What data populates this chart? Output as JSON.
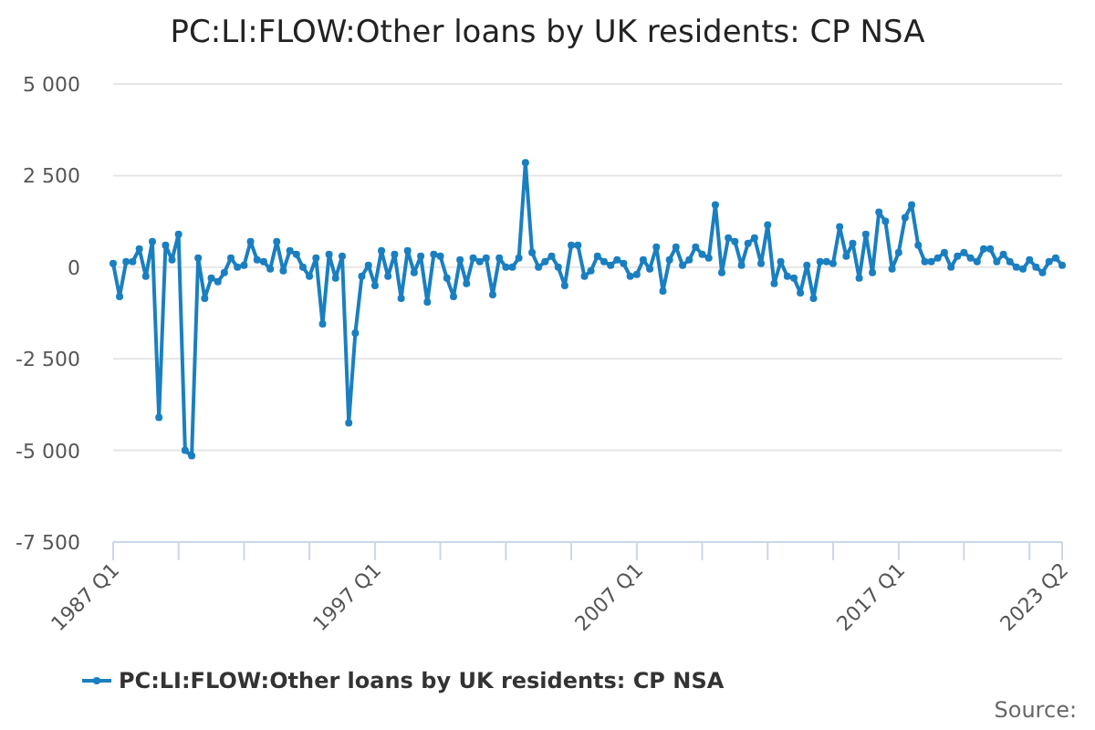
{
  "chart_data": {
    "type": "line",
    "title": "PC:LI:FLOW:Other loans by UK residents: CP NSA",
    "x": [
      "1987-01",
      "1987-04",
      "1987-07",
      "1987-10",
      "1988-01",
      "1988-04",
      "1988-07",
      "1988-10",
      "1989-01",
      "1989-04",
      "1989-07",
      "1989-10",
      "1990-01",
      "1990-04",
      "1990-07",
      "1990-10",
      "1991-01",
      "1991-04",
      "1991-07",
      "1991-10",
      "1992-01",
      "1992-04",
      "1992-07",
      "1992-10",
      "1993-01",
      "1993-04",
      "1993-07",
      "1993-10",
      "1994-01",
      "1994-04",
      "1994-07",
      "1994-10",
      "1995-01",
      "1995-04",
      "1995-07",
      "1995-10",
      "1996-01",
      "1996-04",
      "1996-07",
      "1996-10",
      "1997-01",
      "1997-04",
      "1997-07",
      "1997-10",
      "1998-01",
      "1998-04",
      "1998-07",
      "1998-10",
      "1999-01",
      "1999-04",
      "1999-07",
      "1999-10",
      "2000-01",
      "2000-04",
      "2000-07",
      "2000-10",
      "2001-01",
      "2001-04",
      "2001-07",
      "2001-10",
      "2002-01",
      "2002-04",
      "2002-07",
      "2002-10",
      "2003-01",
      "2003-04",
      "2003-07",
      "2003-10",
      "2004-01",
      "2004-04",
      "2004-07",
      "2004-10",
      "2005-01",
      "2005-04",
      "2005-07",
      "2005-10",
      "2006-01",
      "2006-04",
      "2006-07",
      "2006-10",
      "2007-01",
      "2007-04",
      "2007-07",
      "2007-10",
      "2008-01",
      "2008-04",
      "2008-07",
      "2008-10",
      "2009-01",
      "2009-04",
      "2009-07",
      "2009-10",
      "2010-01",
      "2010-04",
      "2010-07",
      "2010-10",
      "2011-01",
      "2011-04",
      "2011-07",
      "2011-10",
      "2012-01",
      "2012-04",
      "2012-07",
      "2012-10",
      "2013-01",
      "2013-04",
      "2013-07",
      "2013-10",
      "2014-01",
      "2014-04",
      "2014-07",
      "2014-10",
      "2015-01",
      "2015-04",
      "2015-07",
      "2015-10",
      "2016-01",
      "2016-04",
      "2016-07",
      "2016-10",
      "2017-01",
      "2017-04",
      "2017-07",
      "2017-10",
      "2018-01",
      "2018-04",
      "2018-07",
      "2018-10",
      "2019-01",
      "2019-04",
      "2019-07",
      "2019-10",
      "2020-01",
      "2020-04",
      "2020-07",
      "2020-10",
      "2021-01",
      "2021-04",
      "2021-07",
      "2021-10",
      "2022-01",
      "2022-04",
      "2022-07",
      "2022-10",
      "2023-01",
      "2023-04"
    ],
    "series": [
      {
        "name": "PC:LI:FLOW:Other loans by UK residents: CP NSA",
        "color": "#1a7fc1",
        "values": [
          100,
          -800,
          150,
          150,
          500,
          -250,
          700,
          -4100,
          600,
          200,
          900,
          -5000,
          -5150,
          250,
          -850,
          -300,
          -400,
          -150,
          250,
          0,
          50,
          700,
          200,
          150,
          -50,
          700,
          -100,
          450,
          350,
          0,
          -250,
          250,
          -1550,
          350,
          -300,
          300,
          -4250,
          -1800,
          -250,
          50,
          -500,
          450,
          -250,
          350,
          -850,
          450,
          -150,
          300,
          -950,
          350,
          300,
          -300,
          -800,
          200,
          -450,
          250,
          150,
          250,
          -750,
          250,
          0,
          0,
          250,
          2850,
          400,
          0,
          150,
          300,
          0,
          -500,
          600,
          600,
          -250,
          -100,
          300,
          150,
          50,
          200,
          100,
          -250,
          -200,
          200,
          -50,
          550,
          -650,
          200,
          550,
          50,
          200,
          550,
          350,
          250,
          1700,
          -150,
          800,
          700,
          50,
          650,
          800,
          100,
          1150,
          -450,
          150,
          -250,
          -300,
          -700,
          50,
          -850,
          150,
          150,
          100,
          1100,
          300,
          650,
          -300,
          900,
          -150,
          1500,
          1250,
          -50,
          400,
          1350,
          1700,
          600,
          150,
          150,
          250,
          400,
          0,
          300,
          400,
          250,
          150,
          500,
          500,
          150,
          350,
          150,
          0,
          -50,
          200,
          0,
          -150,
          150,
          250,
          50
        ]
      }
    ],
    "ylim": [
      -7500,
      5000
    ],
    "yticks": [
      {
        "value": 5000,
        "label": "5 000"
      },
      {
        "value": 2500,
        "label": "2 500"
      },
      0,
      {
        "value": -2500,
        "label": "-2 500"
      },
      {
        "value": -5000,
        "label": "-5 000"
      },
      {
        "value": -7500,
        "label": "-7 500"
      }
    ],
    "xticks": [
      {
        "value": "1987-01",
        "label": "1987 Q1"
      },
      {
        "value": "1989-07",
        "label": null
      },
      {
        "value": "1992-01",
        "label": null
      },
      {
        "value": "1994-07",
        "label": null
      },
      {
        "value": "1997-01",
        "label": "1997 Q1"
      },
      {
        "value": "1999-07",
        "label": null
      },
      {
        "value": "2002-01",
        "label": null
      },
      {
        "value": "2004-07",
        "label": null
      },
      {
        "value": "2007-01",
        "label": "2007 Q1"
      },
      {
        "value": "2009-07",
        "label": null
      },
      {
        "value": "2012-01",
        "label": null
      },
      {
        "value": "2014-07",
        "label": null
      },
      {
        "value": "2017-01",
        "label": "2017 Q1"
      },
      {
        "value": "2019-07",
        "label": null
      },
      {
        "value": "2022-01",
        "label": null
      },
      {
        "value": "2023-04",
        "label": "2023 Q2"
      }
    ],
    "xlim": [
      "1987-01",
      "2023-04"
    ],
    "grid": "y",
    "legend": "bottom",
    "marker": "circle",
    "line_style": "solid",
    "annotations": [
      "Source:"
    ]
  }
}
